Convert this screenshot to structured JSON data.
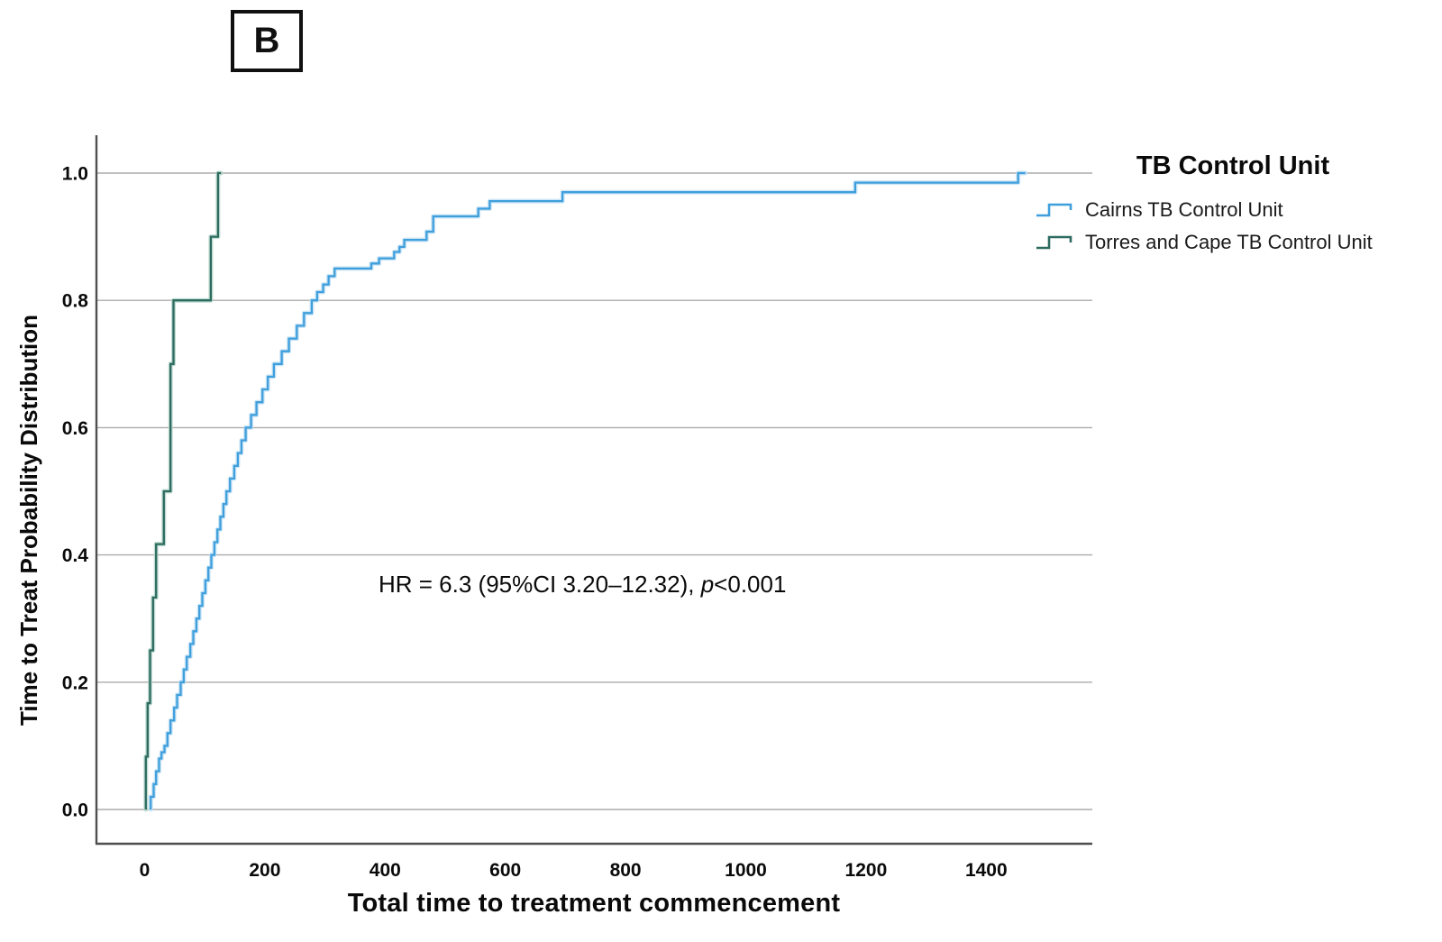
{
  "panel_label": "B",
  "chart_data": {
    "type": "line",
    "subtype": "kaplan-meier-cumulative-step",
    "title": "",
    "xlabel": "Total time to treatment commencement",
    "ylabel": "Time to Treat Probability Distribution",
    "xlim": [
      -80,
      1576
    ],
    "ylim": [
      -0.054,
      1.06
    ],
    "xticks": [
      0,
      200,
      400,
      600,
      800,
      1000,
      1200,
      1400
    ],
    "xtick_labels": [
      "0",
      "200",
      "400",
      "600",
      "800",
      "1000",
      "1200",
      "1400"
    ],
    "yticks": [
      0.0,
      0.2,
      0.4,
      0.6,
      0.8,
      1.0
    ],
    "ytick_labels": [
      "0.0",
      "0.2",
      "0.4",
      "0.6",
      "0.8",
      "1.0"
    ],
    "grid": "horizontal-only",
    "gridline_color": "#ababab",
    "axis_color": "#4f4f4f",
    "legend": {
      "title": "TB Control Unit",
      "position": "outside-top-right"
    },
    "annotation": {
      "prefix": "HR = 6.3 (95%CI 3.20–12.32), ",
      "italic": "p",
      "suffix": "<0.001"
    },
    "series": [
      {
        "name": "Cairns TB Control Unit",
        "color": "#3f9fdc",
        "halo_color": "#c2e1f5",
        "points": [
          [
            10,
            0.0
          ],
          [
            10,
            0.02
          ],
          [
            15,
            0.04
          ],
          [
            19,
            0.06
          ],
          [
            24,
            0.08
          ],
          [
            28,
            0.09
          ],
          [
            33,
            0.1
          ],
          [
            38,
            0.12
          ],
          [
            43,
            0.14
          ],
          [
            49,
            0.16
          ],
          [
            54,
            0.18
          ],
          [
            60,
            0.2
          ],
          [
            65,
            0.22
          ],
          [
            70,
            0.24
          ],
          [
            76,
            0.26
          ],
          [
            81,
            0.28
          ],
          [
            86,
            0.3
          ],
          [
            91,
            0.32
          ],
          [
            96,
            0.34
          ],
          [
            101,
            0.36
          ],
          [
            106,
            0.38
          ],
          [
            111,
            0.4
          ],
          [
            116,
            0.42
          ],
          [
            121,
            0.44
          ],
          [
            126,
            0.46
          ],
          [
            131,
            0.48
          ],
          [
            136,
            0.5
          ],
          [
            142,
            0.52
          ],
          [
            149,
            0.54
          ],
          [
            155,
            0.56
          ],
          [
            161,
            0.58
          ],
          [
            168,
            0.6
          ],
          [
            177,
            0.62
          ],
          [
            186,
            0.64
          ],
          [
            196,
            0.66
          ],
          [
            205,
            0.68
          ],
          [
            215,
            0.7
          ],
          [
            228,
            0.72
          ],
          [
            240,
            0.74
          ],
          [
            253,
            0.76
          ],
          [
            265,
            0.78
          ],
          [
            278,
            0.8
          ],
          [
            287,
            0.813
          ],
          [
            297,
            0.825
          ],
          [
            306,
            0.838
          ],
          [
            316,
            0.85
          ],
          [
            377,
            0.858
          ],
          [
            390,
            0.866
          ],
          [
            415,
            0.876
          ],
          [
            424,
            0.884
          ],
          [
            432,
            0.895
          ],
          [
            469,
            0.908
          ],
          [
            480,
            0.932
          ],
          [
            555,
            0.944
          ],
          [
            574,
            0.956
          ],
          [
            695,
            0.97
          ],
          [
            1182,
            0.985
          ],
          [
            1453,
            1.0
          ],
          [
            1465,
            1.0
          ]
        ]
      },
      {
        "name": "Torres and Cape TB Control Unit",
        "color": "#2d6b60",
        "halo_color": "#b5d6c9",
        "points": [
          [
            2,
            0.0
          ],
          [
            2,
            0.083
          ],
          [
            5,
            0.167
          ],
          [
            9,
            0.25
          ],
          [
            14,
            0.333
          ],
          [
            19,
            0.417
          ],
          [
            32,
            0.5
          ],
          [
            43,
            0.7
          ],
          [
            48,
            0.8
          ],
          [
            110,
            0.9
          ],
          [
            122,
            1.0
          ],
          [
            127,
            1.0
          ]
        ]
      }
    ]
  }
}
